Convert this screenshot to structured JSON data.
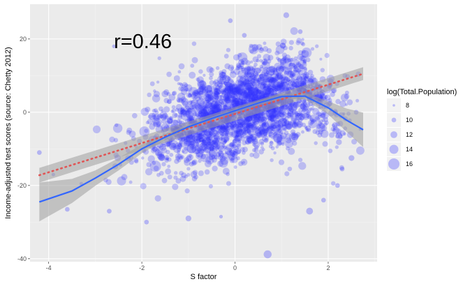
{
  "colors": {
    "panel_bg": "#ebebeb",
    "grid_major": "#ffffff",
    "grid_minor": "#f3f3f3",
    "point": "#3333ff",
    "loess": "#3366ff",
    "linear": "#e05555",
    "band": "#9e9e9e",
    "legend_key_bg": "#f2f2f2"
  },
  "chart_data": {
    "type": "scatter",
    "xlabel": "S factor",
    "ylabel": "Income-adjusted test scores (source: Chetty 2012)",
    "xlim": [
      -4.4,
      3.05
    ],
    "ylim": [
      -40.8,
      29.5
    ],
    "x_ticks": [
      -4,
      -2,
      0,
      2
    ],
    "y_ticks": [
      -40,
      -20,
      0,
      20
    ],
    "x_tick_labels": [
      "-4",
      "-2",
      "0",
      "2"
    ],
    "y_tick_labels": [
      "-40",
      "-20",
      "0",
      "20"
    ],
    "grid": true,
    "annotation": {
      "text": "r=0.46",
      "x": -2.6,
      "y": 17.5
    },
    "legend": {
      "title": "log(Total.Population)",
      "placement": "right",
      "entries": [
        {
          "label": "8",
          "value": 8
        },
        {
          "label": "10",
          "value": 10
        },
        {
          "label": "12",
          "value": 12
        },
        {
          "label": "14",
          "value": 14
        },
        {
          "label": "16",
          "value": 16
        }
      ]
    },
    "size_variable": "log(Total.Population)",
    "point_cloud": {
      "n": 2350,
      "x_mean": 0.15,
      "x_sd": 1.0,
      "slope": 4.1,
      "intercept": 0.3,
      "noise_sd": 6.3
    },
    "points_notable": [
      {
        "x": -4.2,
        "y": -11,
        "size": 10
      },
      {
        "x": -2.6,
        "y": 18,
        "size": 9
      },
      {
        "x": 1.6,
        "y": -27,
        "size": 12
      },
      {
        "x": 0.7,
        "y": -38.8,
        "size": 13
      },
      {
        "x": -1.9,
        "y": -30,
        "size": 10
      },
      {
        "x": -2.7,
        "y": -27,
        "size": 10
      },
      {
        "x": -3.6,
        "y": -26.5,
        "size": 10
      },
      {
        "x": 1.1,
        "y": 26.5,
        "size": 11
      },
      {
        "x": -0.1,
        "y": 25,
        "size": 10
      },
      {
        "x": 2.5,
        "y": -12.5,
        "size": 11
      },
      {
        "x": 2.3,
        "y": -15.5,
        "size": 10
      },
      {
        "x": 2.2,
        "y": -20,
        "size": 10
      },
      {
        "x": -3.3,
        "y": -19.5,
        "size": 9
      },
      {
        "x": -3.9,
        "y": -17,
        "size": 9
      },
      {
        "x": 2.6,
        "y": 0,
        "size": 10
      },
      {
        "x": -1.0,
        "y": -29,
        "size": 11
      },
      {
        "x": 1.9,
        "y": -24,
        "size": 10
      },
      {
        "x": -0.3,
        "y": -28.5,
        "size": 9
      },
      {
        "x": 0.2,
        "y": 21,
        "size": 10
      },
      {
        "x": 1.4,
        "y": 22,
        "size": 10
      }
    ],
    "series": [
      {
        "kind": "linear",
        "x": [
          -4.2,
          2.75
        ],
        "y": [
          -17.2,
          10.5
        ],
        "ci_low": [
          -19.2,
          8.8
        ],
        "ci_high": [
          -15.2,
          12.3
        ]
      },
      {
        "kind": "loess",
        "x": [
          -4.2,
          -3.5,
          -3.0,
          -2.5,
          -2.0,
          -1.5,
          -1.0,
          -0.5,
          0.0,
          0.5,
          1.0,
          1.5,
          2.0,
          2.4,
          2.75
        ],
        "y": [
          -24.5,
          -21.5,
          -18.0,
          -14.2,
          -10.0,
          -6.8,
          -4.0,
          -1.7,
          0.4,
          2.5,
          4.3,
          4.4,
          1.2,
          -2.2,
          -4.8
        ],
        "ci_low": [
          -29.8,
          -24.8,
          -20.1,
          -15.9,
          -11.2,
          -7.7,
          -4.6,
          -2.2,
          -0.1,
          1.9,
          3.6,
          3.5,
          -0.6,
          -5.4,
          -9.5
        ],
        "ci_high": [
          -19.2,
          -18.2,
          -15.9,
          -12.5,
          -8.8,
          -5.9,
          -3.4,
          -1.2,
          0.9,
          3.1,
          5.0,
          5.3,
          3.0,
          1.0,
          -0.1
        ]
      }
    ]
  }
}
